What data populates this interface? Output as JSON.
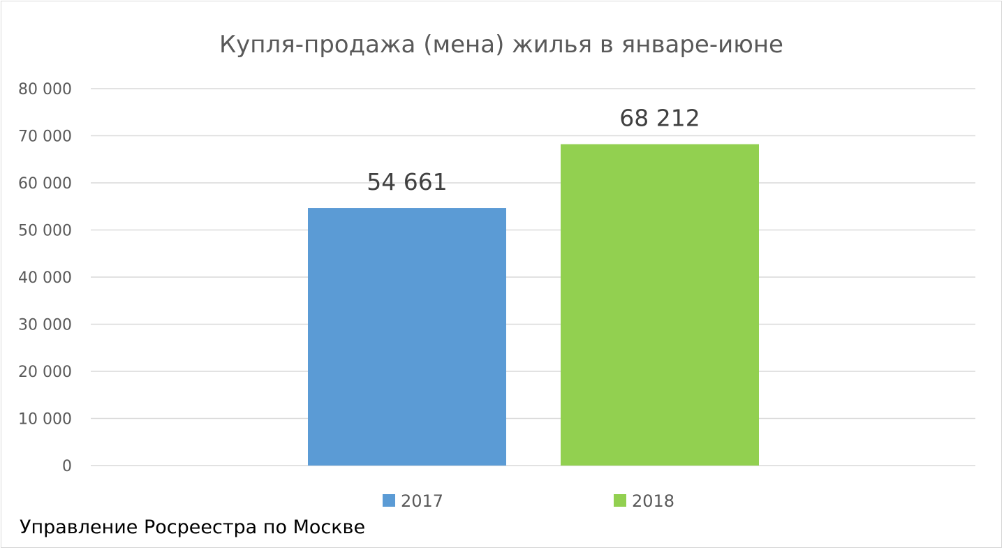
{
  "chart_data": {
    "type": "bar",
    "title": "Купля-продажа (мена) жилья в январе-июне",
    "categories": [
      "2017",
      "2018"
    ],
    "values": [
      54661,
      68212
    ],
    "data_labels": [
      "54 661",
      "68 212"
    ],
    "colors": [
      "#5b9bd5",
      "#92d050"
    ],
    "ylim": [
      0,
      80000
    ],
    "yticks": [
      0,
      10000,
      20000,
      30000,
      40000,
      50000,
      60000,
      70000,
      80000
    ],
    "ytick_labels": [
      "0",
      "10 000",
      "20 000",
      "30 000",
      "40 000",
      "50 000",
      "60 000",
      "70 000",
      "80 000"
    ],
    "grid": true,
    "legend_position": "bottom",
    "legend": [
      "2017",
      "2018"
    ],
    "xlabel": "",
    "ylabel": ""
  },
  "source_note": "Управление Росреестра по Москве"
}
